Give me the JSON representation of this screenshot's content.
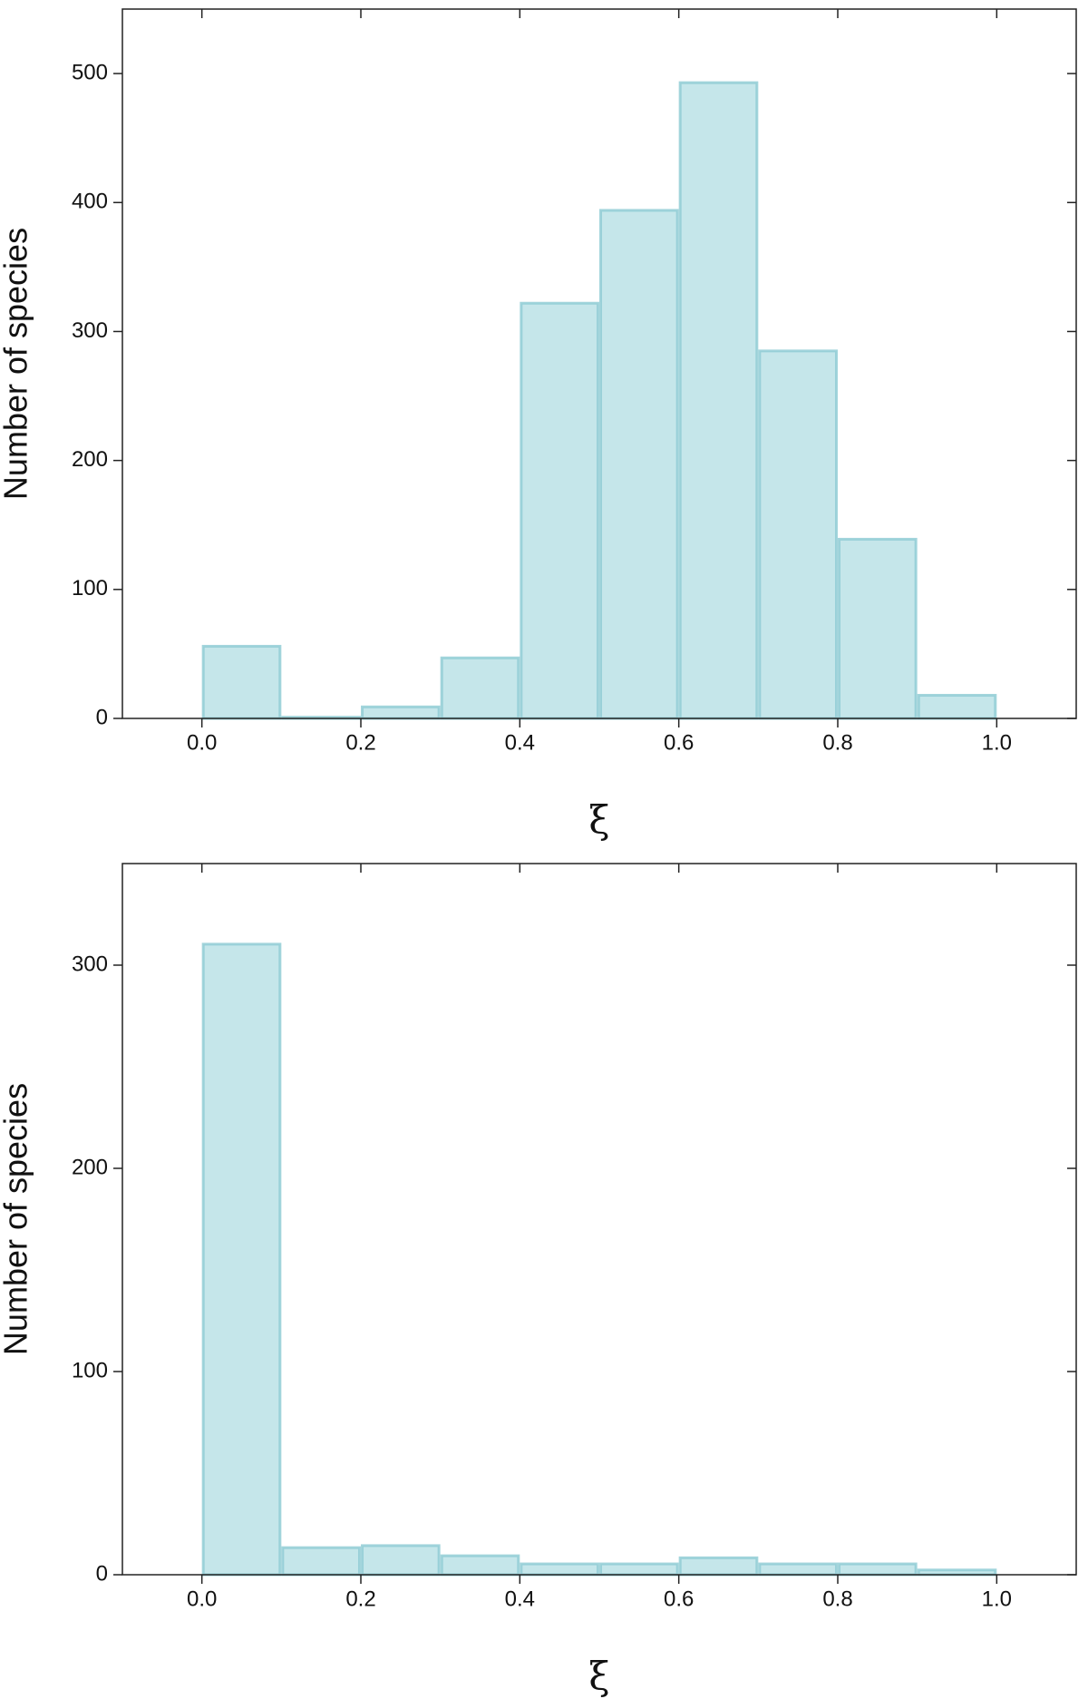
{
  "chart_data": [
    {
      "type": "histogram",
      "xlabel": "ξ",
      "ylabel": "Number of species",
      "bins": [
        0,
        0.1,
        0.2,
        0.3,
        0.4,
        0.5,
        0.6,
        0.7,
        0.8,
        0.9,
        1.0
      ],
      "values": [
        57,
        2,
        10,
        48,
        323,
        395,
        494,
        286,
        140,
        19
      ],
      "color": "#c5e6ea",
      "edgecolor": "#8ccbd3",
      "xlim": [
        -0.1,
        1.1
      ],
      "ylim": [
        0,
        550
      ],
      "xticks": [
        {
          "value": 0,
          "label": "0.0"
        },
        0.2,
        0.4,
        0.6,
        0.8,
        {
          "value": 1,
          "label": "1.0"
        }
      ],
      "yticks": [
        0,
        100,
        200,
        300,
        400,
        500
      ]
    },
    {
      "type": "histogram",
      "xlabel": "ξ",
      "ylabel": "Number of species",
      "bins": [
        0,
        0.1,
        0.2,
        0.3,
        0.4,
        0.5,
        0.6,
        0.7,
        0.8,
        0.9,
        1.0
      ],
      "values": [
        311,
        14,
        15,
        10,
        6,
        6,
        9,
        6,
        6,
        3
      ],
      "color": "#c5e6ea",
      "edgecolor": "#8ccbd3",
      "xlim": [
        -0.1,
        1.1
      ],
      "ylim": [
        0,
        350
      ],
      "xticks": [
        {
          "value": 0,
          "label": "0.0"
        },
        0.2,
        0.4,
        0.6,
        0.8,
        {
          "value": 1,
          "label": "1.0"
        }
      ],
      "yticks": [
        0,
        100,
        200,
        300
      ]
    }
  ]
}
